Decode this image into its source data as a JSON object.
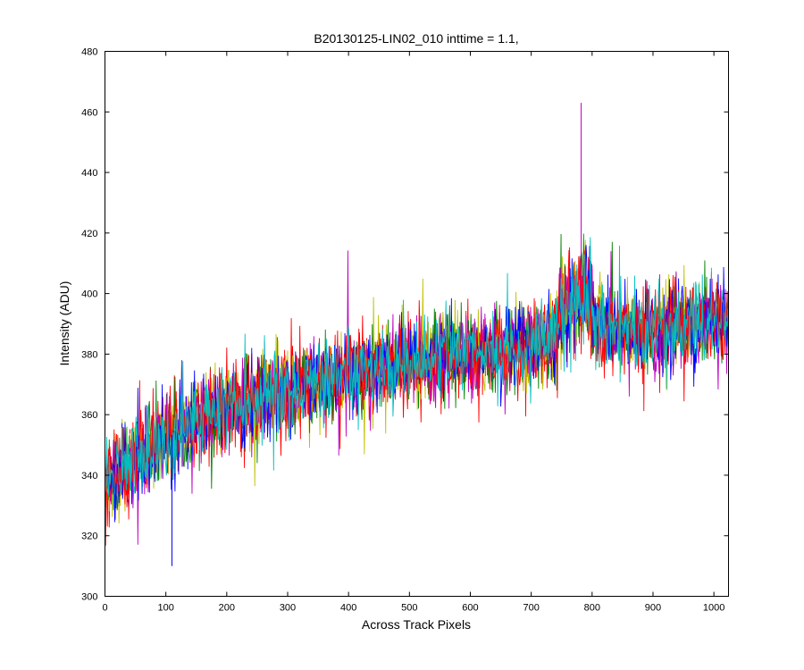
{
  "chart_data": {
    "type": "line",
    "title": "B20130125-LIN02_010 inttime = 1.1,",
    "xlabel": "Across Track Pixels",
    "ylabel": "Intensity (ADU)",
    "xlim": [
      0,
      1024
    ],
    "ylim": [
      300,
      480
    ],
    "xticks": [
      0,
      100,
      200,
      300,
      400,
      500,
      600,
      700,
      800,
      900,
      1000
    ],
    "yticks": [
      300,
      320,
      340,
      360,
      380,
      400,
      420,
      440,
      460,
      480
    ],
    "grid": false,
    "legend": "none",
    "series_count": 7,
    "series_colors": [
      "#ff0000",
      "#008000",
      "#bfbf00",
      "#bf00bf",
      "#0000ff",
      "#ff0000",
      "#00bfbf"
    ],
    "trend_x": [
      0,
      20,
      50,
      100,
      150,
      200,
      300,
      400,
      500,
      600,
      700,
      750,
      780,
      800,
      850,
      900,
      950,
      1000,
      1024
    ],
    "trend_y": [
      337,
      340,
      345,
      352,
      358,
      362,
      368,
      373,
      377,
      380,
      383,
      388,
      395,
      390,
      387,
      388,
      390,
      391,
      392
    ],
    "noise_amplitude": 11,
    "max_point": {
      "x": 782,
      "y": 463
    },
    "min_point": {
      "x": 110,
      "y": 310
    }
  }
}
